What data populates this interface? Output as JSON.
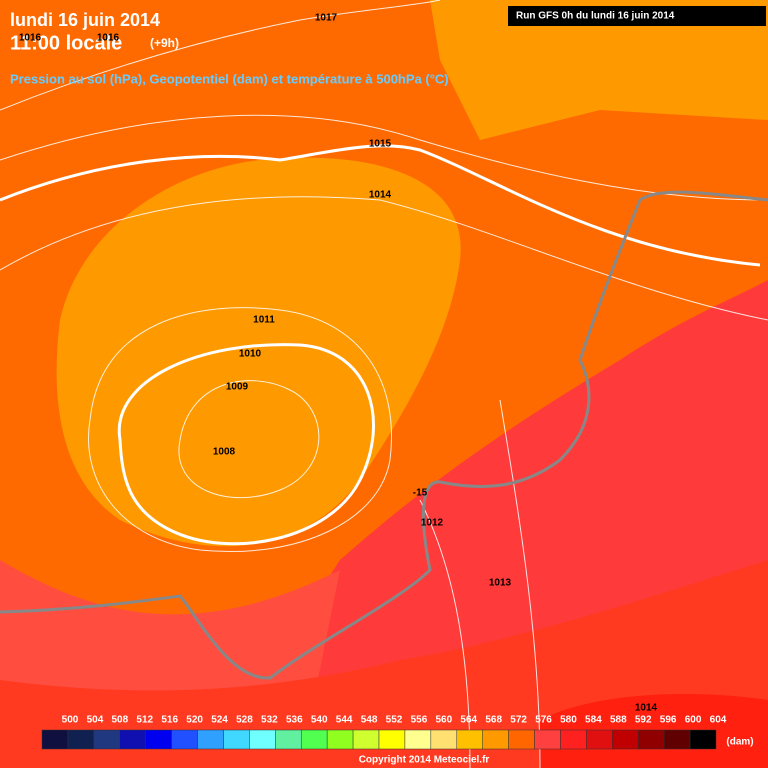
{
  "header": {
    "date": "lundi 16 juin 2014",
    "time": "11:00 locale",
    "offset": "(+9h)",
    "subtitle": "Pression au sol (hPa), Geopotentiel (dam) et température à 500hPa (°C)",
    "run": "Run GFS 0h du lundi 16 juin 2014"
  },
  "map": {
    "labels": [
      "1017",
      "1016",
      "1016",
      "1015",
      "1014",
      "1011",
      "1010",
      "1009",
      "1008",
      "-15",
      "1012",
      "1013",
      "1014"
    ]
  },
  "legend": {
    "ticks": [
      500,
      504,
      508,
      512,
      516,
      520,
      524,
      528,
      532,
      536,
      540,
      544,
      548,
      552,
      556,
      560,
      564,
      568,
      572,
      576,
      580,
      584,
      588,
      592,
      596,
      600,
      604
    ],
    "colors": [
      "#101040",
      "#102050",
      "#203880",
      "#1010b0",
      "#0000f0",
      "#2050ff",
      "#30a0ff",
      "#40d8ff",
      "#70ffff",
      "#60f0a0",
      "#50ff50",
      "#90ff20",
      "#d0ff30",
      "#ffff00",
      "#ffff90",
      "#ffe070",
      "#ffc000",
      "#ff9900",
      "#ff6600",
      "#ff4040",
      "#ff2020",
      "#e01010",
      "#c00000",
      "#900000",
      "#600000",
      "#000000"
    ],
    "unit": "(dam)"
  },
  "footer": {
    "copyright": "Copyright 2014 Meteociel.fr"
  }
}
